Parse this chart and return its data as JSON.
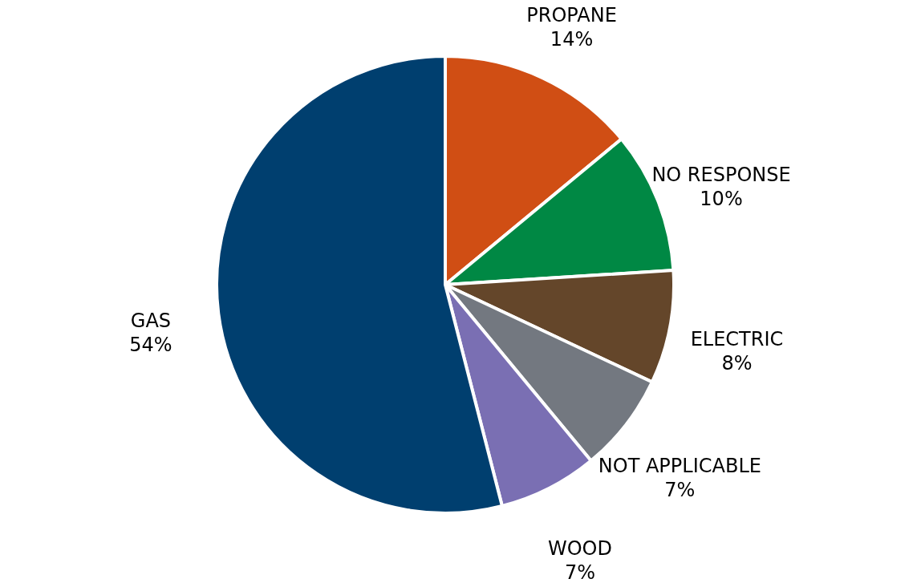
{
  "chart_data": {
    "type": "pie",
    "categories": [
      "PROPANE",
      "NO RESPONSE",
      "ELECTRIC",
      "NOT APPLICABLE",
      "WOOD",
      "GAS"
    ],
    "values": [
      14,
      10,
      8,
      7,
      7,
      54
    ],
    "value_labels": [
      "14%",
      "10%",
      "8%",
      "7%",
      "7%",
      "54%"
    ],
    "colors": [
      "#d04e14",
      "#008844",
      "#64462a",
      "#737880",
      "#7a6fb3",
      "#003f6f"
    ],
    "legend": false
  }
}
